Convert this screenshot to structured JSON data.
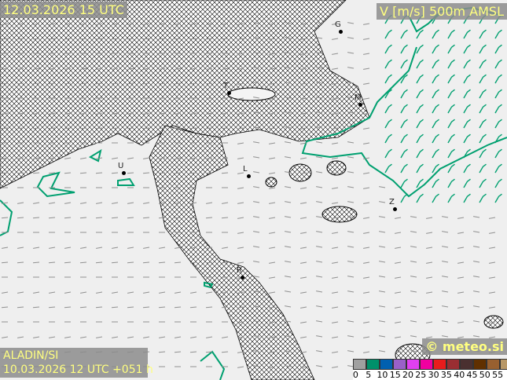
{
  "header": {
    "valid_time": "12.03.2026 15 UTC",
    "parameter": "V [m/s] 500m AMSL"
  },
  "footer": {
    "model": "ALADIN/SI",
    "run_info": "10.03.2026 12 UTC +051 h",
    "copyright": "© meteo.si"
  },
  "legend": {
    "colors": [
      "#a0a0a0",
      "#00906a",
      "#0060b0",
      "#9a60c8",
      "#e040f0",
      "#f000a0",
      "#e81c1c",
      "#9a2e32",
      "#4a3030",
      "#603000",
      "#986030",
      "#b89868"
    ],
    "ticks": [
      "0",
      "5",
      "10",
      "15",
      "20",
      "25",
      "30",
      "35",
      "40",
      "45",
      "50",
      "55"
    ]
  },
  "cities": [
    {
      "label": "G"
    },
    {
      "label": "M"
    },
    {
      "label": "T"
    },
    {
      "label": "U"
    },
    {
      "label": "L"
    },
    {
      "label": "Z"
    },
    {
      "label": "R"
    }
  ],
  "style": {
    "contour_color": "#00a070",
    "hatch_color": "#000000",
    "barb_color": "#909090",
    "barb_strong_color": "#00a070"
  }
}
